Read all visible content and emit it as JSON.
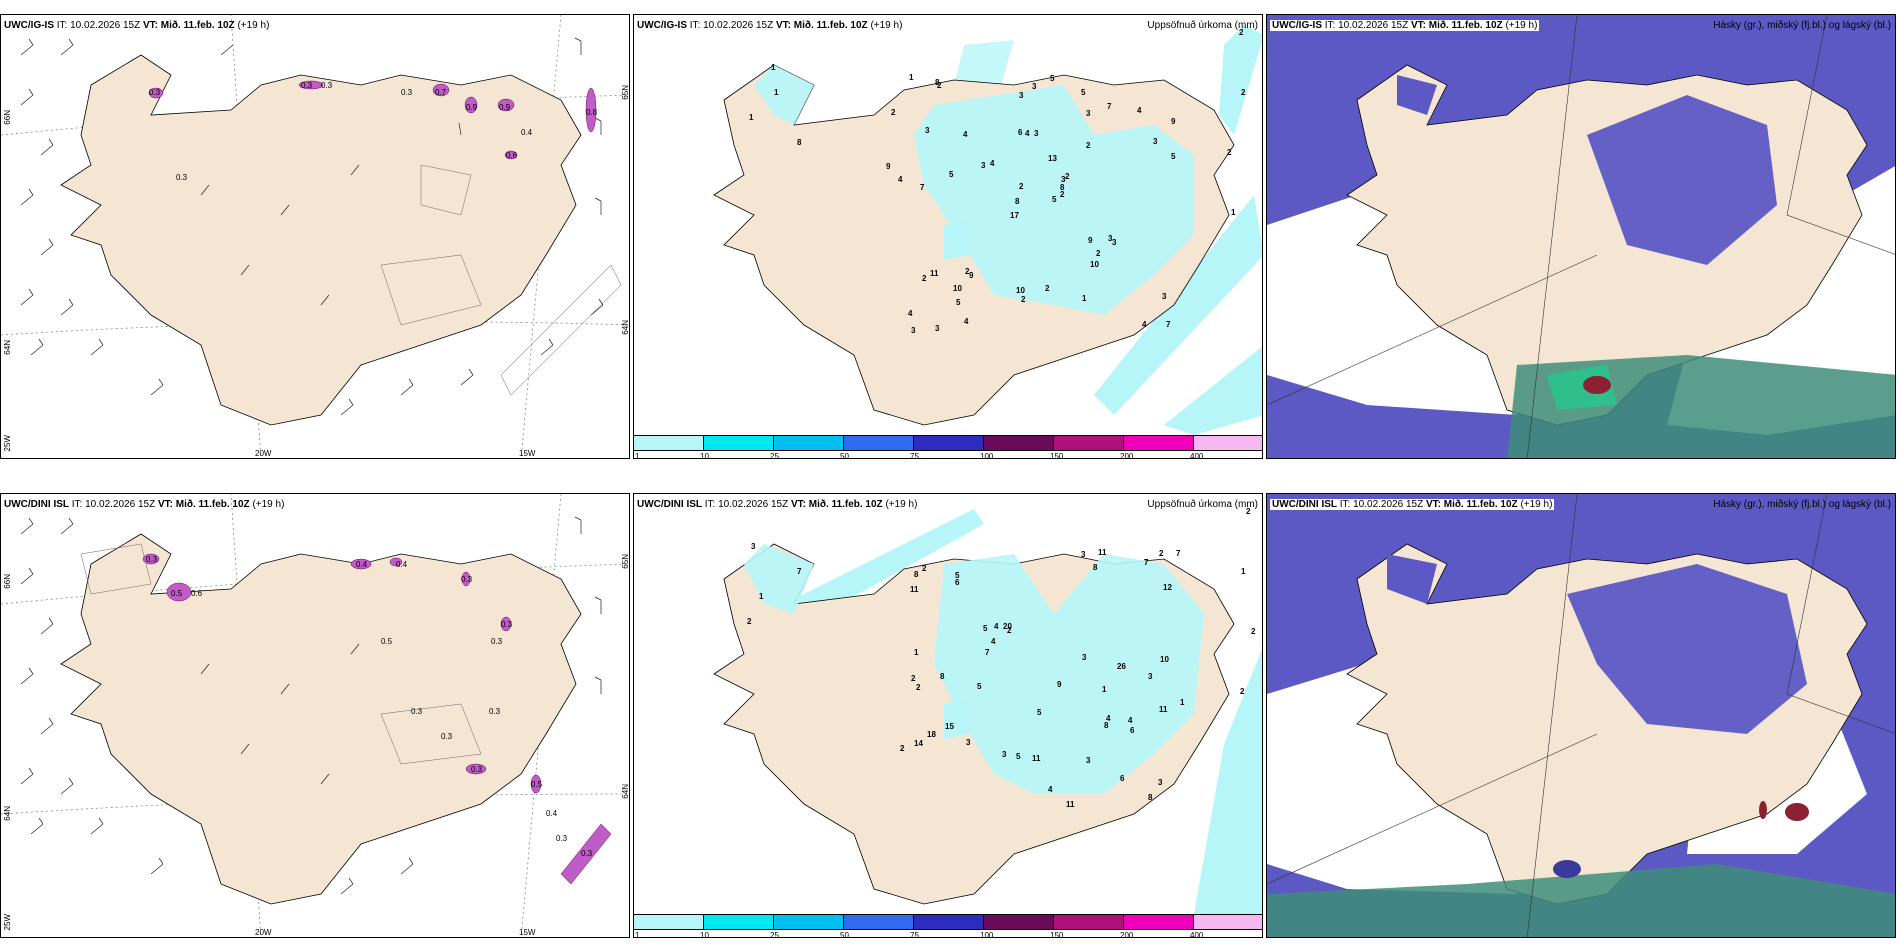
{
  "common": {
    "it_label": "IT:",
    "it_value": "10.02.2026 15Z",
    "vt_label": "VT:",
    "vt_value": "Mið. 11.feb. 10Z",
    "offset": "(+19 h)"
  },
  "rows": [
    {
      "model": "UWC/IG-IS"
    },
    {
      "model": "UWC/DINI ISL"
    }
  ],
  "precip": {
    "title": "Uppsöfnuð úrkoma (mm)",
    "legend": {
      "labels": [
        "1",
        "10",
        "25",
        "50",
        "75",
        "100",
        "150",
        "200",
        "400"
      ],
      "colors": [
        "#b6f6f8",
        "#00e8f0",
        "#00c0f0",
        "#2f6cf0",
        "#2d2cc0",
        "#6a0a5a",
        "#b0107c",
        "#f000b8",
        "#f6b8f0"
      ]
    },
    "top_values": [
      "2",
      "2",
      "2",
      "1",
      "1",
      "1",
      "1",
      "8",
      "3",
      "9",
      "5",
      "3",
      "3",
      "5",
      "2",
      "7",
      "7",
      "9",
      "17",
      "2",
      "3",
      "6",
      "13",
      "11",
      "4",
      "4",
      "5",
      "4",
      "2",
      "3",
      "3",
      "3",
      "4",
      "9",
      "5",
      "8",
      "10",
      "2",
      "4",
      "7",
      "2",
      "4",
      "3",
      "3",
      "5",
      "3",
      "5",
      "10",
      "4",
      "9",
      "8",
      "3",
      "2",
      "2",
      "2",
      "3",
      "2",
      "2",
      "1",
      "10",
      "8",
      "1",
      "2",
      "4",
      "3"
    ],
    "bottom_values": [
      "2",
      "1",
      "2",
      "2",
      "3",
      "7",
      "1",
      "2",
      "2",
      "6",
      "14",
      "8",
      "5",
      "11",
      "11",
      "2",
      "8",
      "3",
      "3",
      "10",
      "5",
      "9",
      "20",
      "15",
      "7",
      "7",
      "7",
      "11",
      "3",
      "5",
      "4",
      "2",
      "6",
      "26",
      "4",
      "3",
      "4",
      "5",
      "3",
      "6",
      "8",
      "8",
      "11",
      "18",
      "12",
      "11",
      "8",
      "5",
      "4",
      "3",
      "2",
      "2",
      "3",
      "1",
      "1",
      "4",
      "2",
      "1"
    ]
  },
  "clouds": {
    "title": "Hásky (gr.), miðský (fj.bl.) og lágský (bl.)"
  },
  "wind": {
    "lat_labels": [
      "66N",
      "64N",
      "65N",
      "64N"
    ],
    "lon_labels": [
      "20W",
      "15W"
    ],
    "lon_left": "25W",
    "top_values": [
      "0.3",
      "0.3",
      "0.3",
      "0.7",
      "0.9",
      "0.9",
      "0.8",
      "0.6",
      "0.3",
      "0.4",
      "0.3"
    ],
    "bottom_values": [
      "0.3",
      "0.5",
      "0.6",
      "0.4",
      "0.4",
      "0.3",
      "0.5",
      "0.3",
      "0.3",
      "0.3",
      "0.3",
      "0.5",
      "0.4",
      "0.3",
      "0.3",
      "0.3",
      "0.3"
    ]
  },
  "colors": {
    "land": "#f5e6d3",
    "coast": "#000000",
    "precip_light": "#b6f6f8",
    "cloud_mid": "#5c59c4",
    "cloud_high": "#3e8d7a",
    "ocean": "#ffffff"
  }
}
